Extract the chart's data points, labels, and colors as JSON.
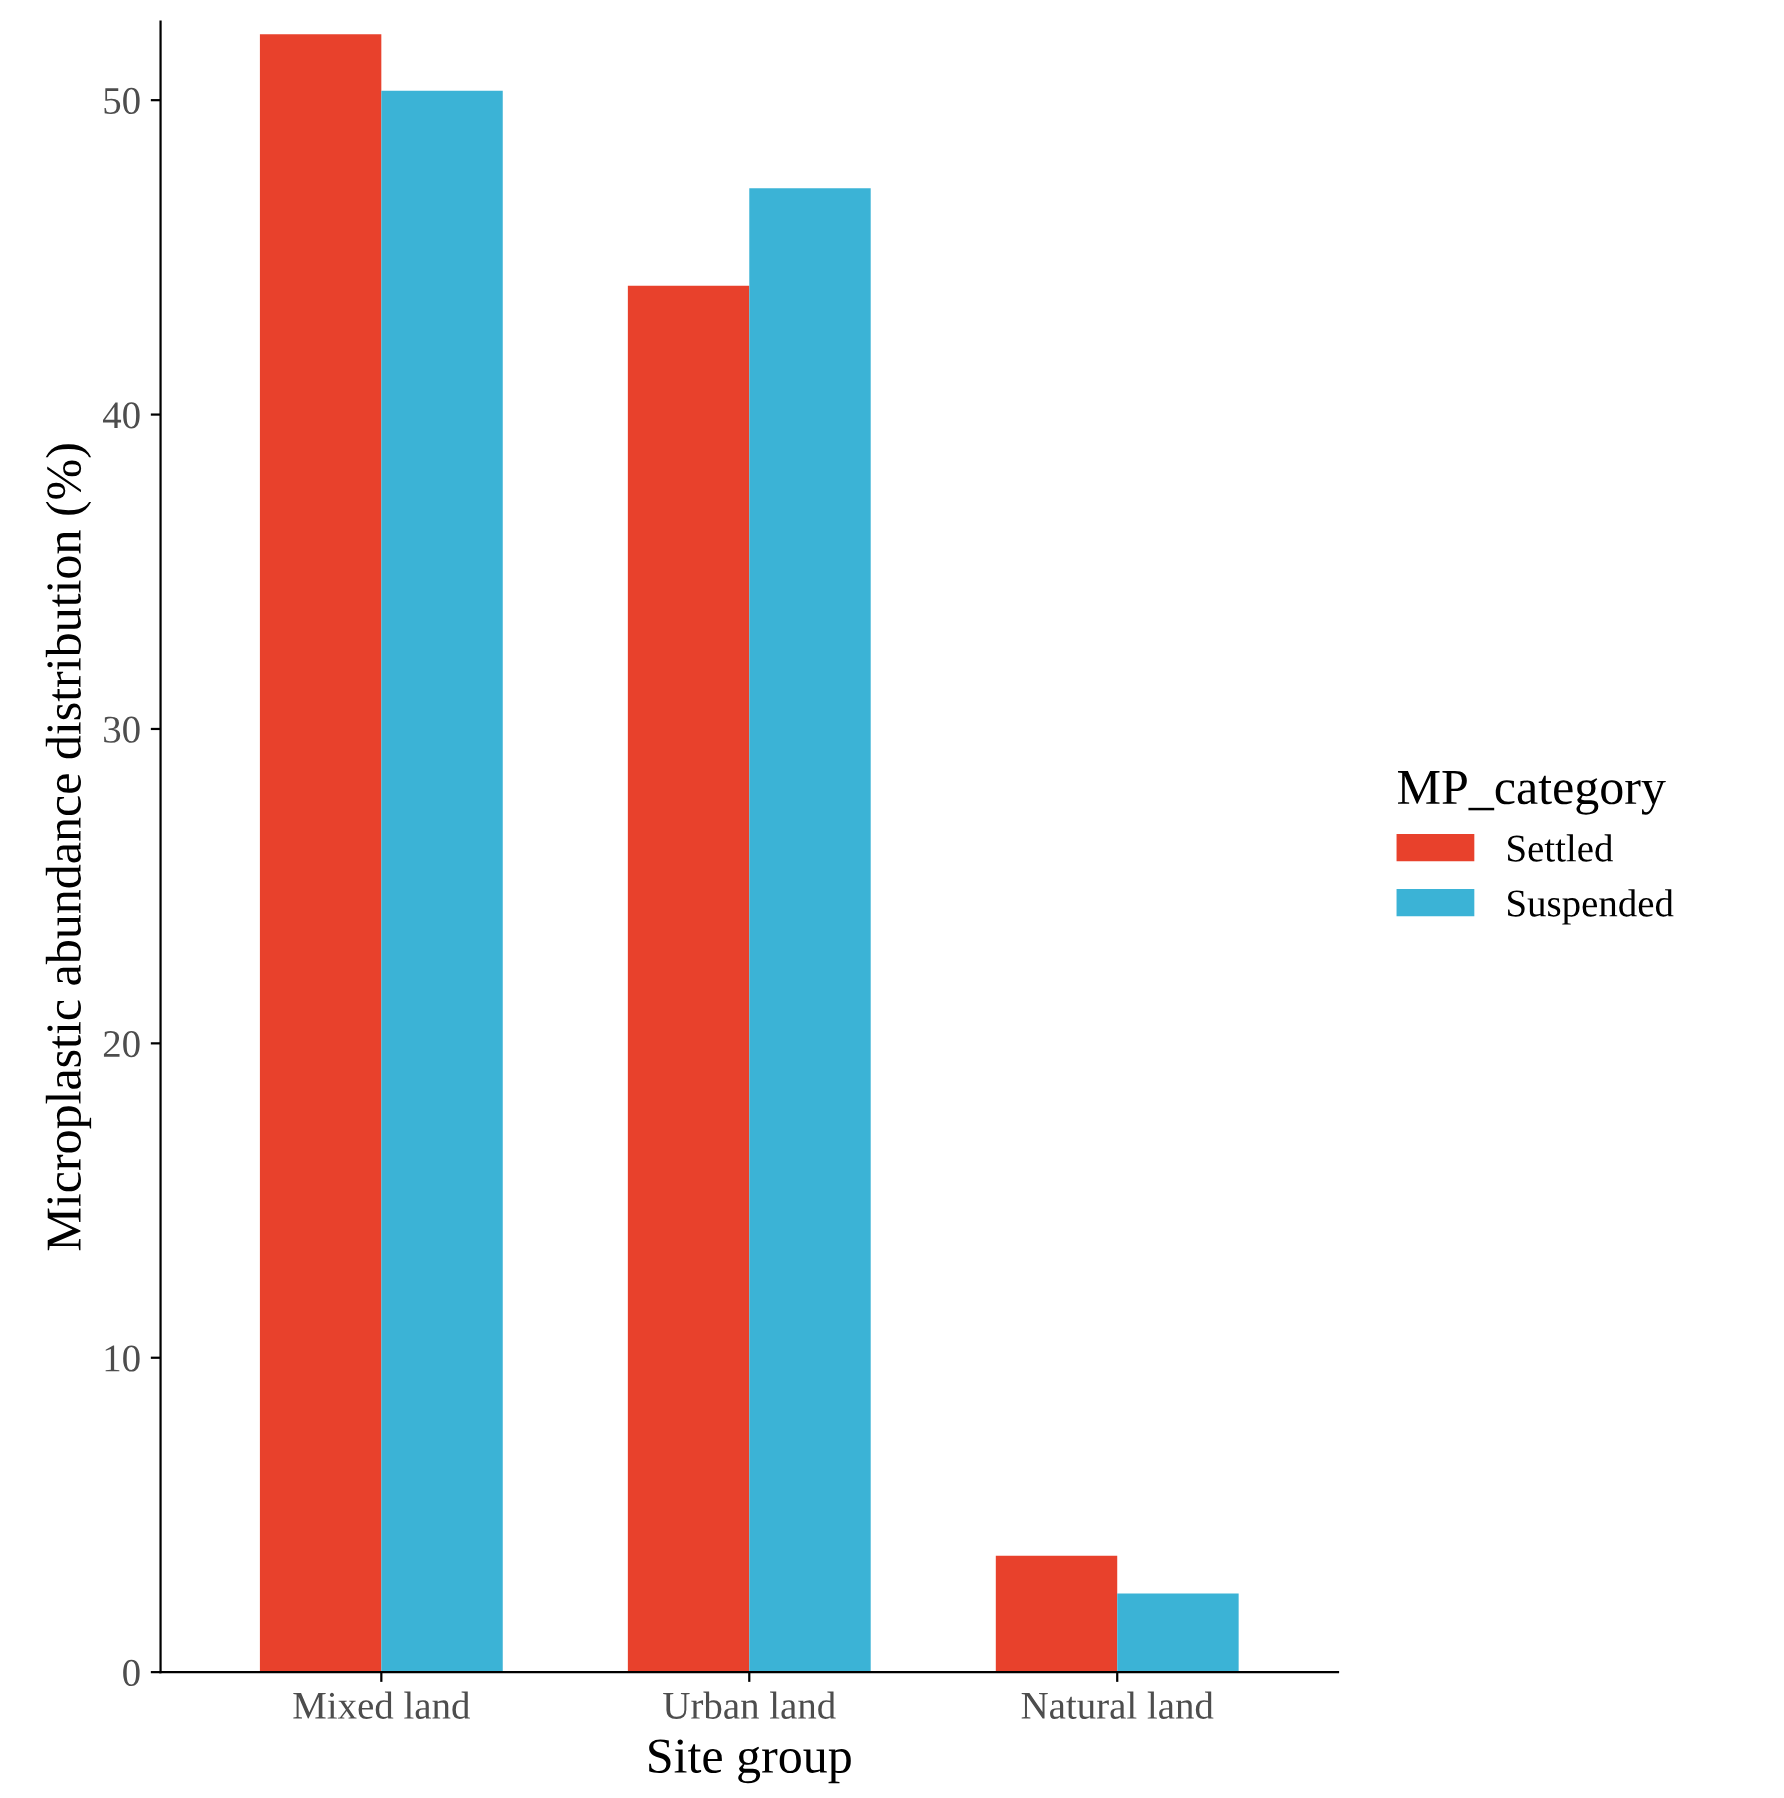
{
  "chart_data": {
    "type": "bar",
    "xlabel": "Site group",
    "ylabel": "Microplastic abundance distribution (%)",
    "legend_title": "MP_category",
    "categories": [
      "Mixed land",
      "Urban land",
      "Natural land"
    ],
    "series": [
      {
        "name": "Settled",
        "color": "#e8412c",
        "values": [
          52.1,
          44.1,
          3.7
        ]
      },
      {
        "name": "Suspended",
        "color": "#3bb3d6",
        "values": [
          50.3,
          47.2,
          2.5
        ]
      }
    ],
    "ylim": [
      0,
      52.5
    ],
    "yticks": [
      0,
      10,
      20,
      30,
      40,
      50
    ],
    "grid": false,
    "legend": "right"
  }
}
